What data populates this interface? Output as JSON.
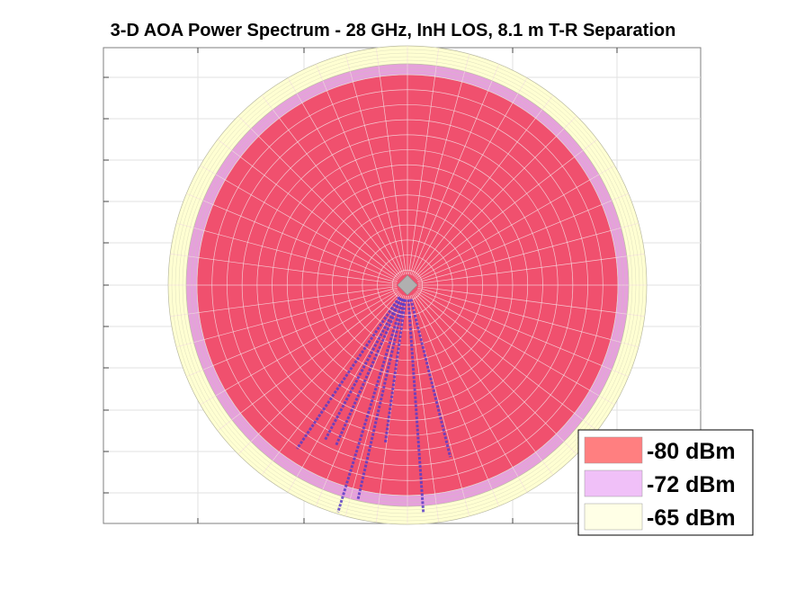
{
  "chart_data": {
    "type": "polar-surface",
    "title": "3-D AOA Power Spectrum - 28 GHz, InH LOS, 8.1 m T-R Separation",
    "xlabel": "",
    "ylabel": "",
    "grid": true,
    "legend_position": "bottom-right",
    "rings": [
      {
        "label": "-80 dBm",
        "level": -80,
        "color": "#f0506e",
        "legend_color": "#ff7f80"
      },
      {
        "label": "-72 dBm",
        "level": -72,
        "color": "#e6a0dc",
        "legend_color": "#f0c0f8"
      },
      {
        "label": "-65 dBm",
        "level": -65,
        "color": "#ffffd2",
        "legend_color": "#ffffe6"
      }
    ],
    "paths": [
      {
        "azimuth_deg": 214,
        "power_dBm": -80,
        "radius_fraction": 0.82
      },
      {
        "azimuth_deg": 208,
        "power_dBm": -80,
        "radius_fraction": 0.72
      },
      {
        "azimuth_deg": 204,
        "power_dBm": -80,
        "radius_fraction": 0.72
      },
      {
        "azimuth_deg": 197,
        "power_dBm": -80,
        "radius_fraction": 1.0
      },
      {
        "azimuth_deg": 193,
        "power_dBm": -80,
        "radius_fraction": 0.92
      },
      {
        "azimuth_deg": 188,
        "power_dBm": -80,
        "radius_fraction": 0.65
      },
      {
        "azimuth_deg": 176,
        "power_dBm": -80,
        "radius_fraction": 0.96
      },
      {
        "azimuth_deg": 166,
        "power_dBm": -80,
        "radius_fraction": 0.73
      }
    ]
  }
}
